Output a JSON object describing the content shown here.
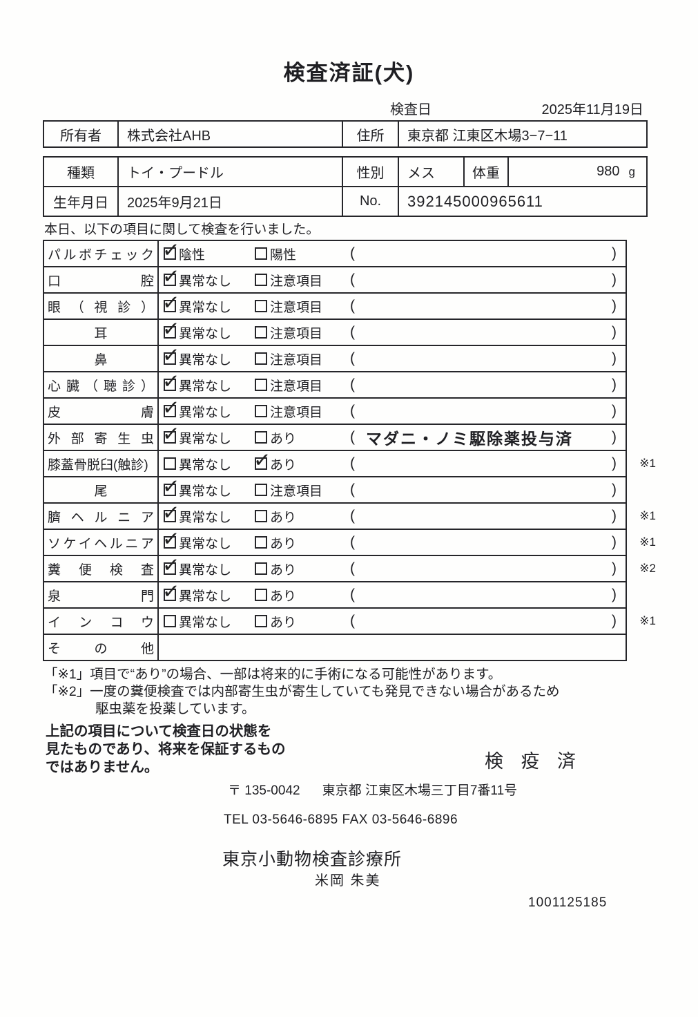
{
  "title": "検査済証(犬)",
  "exam_date": {
    "label": "検査日",
    "value": "2025年11月19日"
  },
  "owner": {
    "owner_label": "所有者",
    "owner_name": "株式会社AHB",
    "address_label": "住所",
    "address": "東京都 江東区木場3−7−11"
  },
  "animal": {
    "breed_label": "種類",
    "breed": "トイ・プードル",
    "sex_label": "性別",
    "sex": "メス",
    "weight_label": "体重",
    "weight": "980",
    "weight_unit": "g",
    "birth_label": "生年月日",
    "birth_date": "2025年9月21日",
    "no_label": "No.",
    "no_value": "392145000965611"
  },
  "intro": "本日、以下の項目に関して検査を行いました。",
  "checklist": {
    "rows": [
      {
        "label": "パルボチェック",
        "align": "justify",
        "opt1": "陰性",
        "opt2": "陽性",
        "checked": 1,
        "paren": "",
        "mark": ""
      },
      {
        "label": "口腔",
        "align": "justify",
        "opt1": "異常なし",
        "opt2": "注意項目",
        "checked": 1,
        "paren": "",
        "mark": ""
      },
      {
        "label": "眼（視診）",
        "align": "justify",
        "opt1": "異常なし",
        "opt2": "注意項目",
        "checked": 1,
        "paren": "",
        "mark": ""
      },
      {
        "label": "耳",
        "align": "center",
        "opt1": "異常なし",
        "opt2": "注意項目",
        "checked": 1,
        "paren": "",
        "mark": ""
      },
      {
        "label": "鼻",
        "align": "center",
        "opt1": "異常なし",
        "opt2": "注意項目",
        "checked": 1,
        "paren": "",
        "mark": ""
      },
      {
        "label": "心臓（聴診）",
        "align": "justify",
        "opt1": "異常なし",
        "opt2": "注意項目",
        "checked": 1,
        "paren": "",
        "mark": ""
      },
      {
        "label": "皮膚",
        "align": "justify",
        "opt1": "異常なし",
        "opt2": "注意項目",
        "checked": 1,
        "paren": "",
        "mark": ""
      },
      {
        "label": "外部寄生虫",
        "align": "justify",
        "opt1": "異常なし",
        "opt2": "あり",
        "checked": 1,
        "paren": "マダニ・ノミ駆除薬投与済",
        "mark": ""
      },
      {
        "label": "膝蓋骨脱臼(触診)",
        "align": "left",
        "opt1": "異常なし",
        "opt2": "あり",
        "checked": 2,
        "paren": "",
        "mark": "※1"
      },
      {
        "label": "尾",
        "align": "center",
        "opt1": "異常なし",
        "opt2": "注意項目",
        "checked": 1,
        "paren": "",
        "mark": ""
      },
      {
        "label": "臍ヘルニア",
        "align": "justify",
        "opt1": "異常なし",
        "opt2": "あり",
        "checked": 1,
        "paren": "",
        "mark": "※1"
      },
      {
        "label": "ソケイヘルニア",
        "align": "justify",
        "opt1": "異常なし",
        "opt2": "あり",
        "checked": 1,
        "paren": "",
        "mark": "※1"
      },
      {
        "label": "糞便検査",
        "align": "justify",
        "opt1": "異常なし",
        "opt2": "あり",
        "checked": 1,
        "paren": "",
        "mark": "※2"
      },
      {
        "label": "泉門",
        "align": "justify",
        "opt1": "異常なし",
        "opt2": "あり",
        "checked": 1,
        "paren": "",
        "mark": ""
      },
      {
        "label": "インコウ",
        "align": "justify",
        "opt1": "異常なし",
        "opt2": "あり",
        "checked": 0,
        "paren": "",
        "mark": "※1"
      },
      {
        "label": "その他",
        "align": "justify",
        "type": "other",
        "opt1": "",
        "opt2": "",
        "checked": 0,
        "paren": "",
        "mark": ""
      }
    ]
  },
  "notes": {
    "note1": "「※1」項目で“あり”の場合、一部は将来的に手術になる可能性があります。",
    "note2": "「※2」一度の糞便検査では内部寄生虫が寄生していても発見できない場合があるため",
    "note2_cont": "駆虫薬を投薬しています。"
  },
  "footer": {
    "statement_line1": "上記の項目について検査日の状態を",
    "statement_line2": "見たものであり、将来を保証するもの",
    "statement_line3": "ではありません。",
    "stamp": "検 疫 済",
    "postal": "〒 135-0042",
    "address": "東京都 江東区木場三丁目7番11号",
    "tel_fax": "TEL 03-5646-6895  FAX 03-5646-6896",
    "clinic": "東京小動物検査診療所",
    "examiner": "米岡 朱美",
    "serial": "1001125185"
  }
}
